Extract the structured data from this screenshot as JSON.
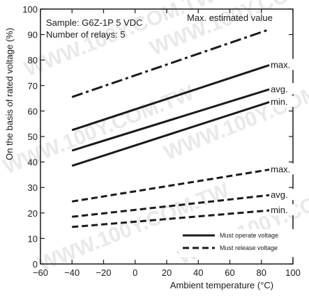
{
  "chart_data": {
    "type": "line",
    "title": "",
    "xlabel": "Ambient temperature (°C)",
    "ylabel": "On the basis of rated voltage (%)",
    "xlim": [
      -60,
      100
    ],
    "ylim": [
      0,
      100
    ],
    "xticks": [
      -60,
      -40,
      -20,
      0,
      20,
      40,
      60,
      80,
      100
    ],
    "yticks": [
      0,
      10,
      20,
      30,
      40,
      50,
      60,
      70,
      80,
      90,
      100
    ],
    "grid": false,
    "annotations": {
      "sample": "Sample: G6Z-1P  5 VDC",
      "relays": "Number of relays: 5",
      "max_estimated": "Max. estimated value"
    },
    "legend": {
      "position": "bottom-right",
      "entries": [
        {
          "label": "Must operate voltage",
          "style": "solid"
        },
        {
          "label": "Must release voltage",
          "style": "dashed"
        }
      ]
    },
    "series": [
      {
        "label": "",
        "group": "Max. estimated value",
        "style": "dashdot",
        "x": [
          -40,
          85
        ],
        "y": [
          65.5,
          92
        ]
      },
      {
        "label": "max.",
        "group": "Must operate voltage",
        "style": "solid",
        "x": [
          -40,
          85
        ],
        "y": [
          52.5,
          78
        ]
      },
      {
        "label": "avg.",
        "group": "Must operate voltage",
        "style": "solid",
        "x": [
          -40,
          85
        ],
        "y": [
          44.5,
          68.5
        ]
      },
      {
        "label": "min.",
        "group": "Must operate voltage",
        "style": "solid",
        "x": [
          -40,
          85
        ],
        "y": [
          38.5,
          63.5
        ]
      },
      {
        "label": "max.",
        "group": "Must release voltage",
        "style": "dashed",
        "x": [
          -40,
          85
        ],
        "y": [
          24.5,
          37
        ]
      },
      {
        "label": "avg.",
        "group": "Must release voltage",
        "style": "dashed",
        "x": [
          -40,
          85
        ],
        "y": [
          18.5,
          27
        ]
      },
      {
        "label": "min.",
        "group": "Must release voltage",
        "style": "dashed",
        "x": [
          -40,
          85
        ],
        "y": [
          14.5,
          21
        ]
      }
    ],
    "watermark": "WWW.100Y.COM.TW"
  }
}
